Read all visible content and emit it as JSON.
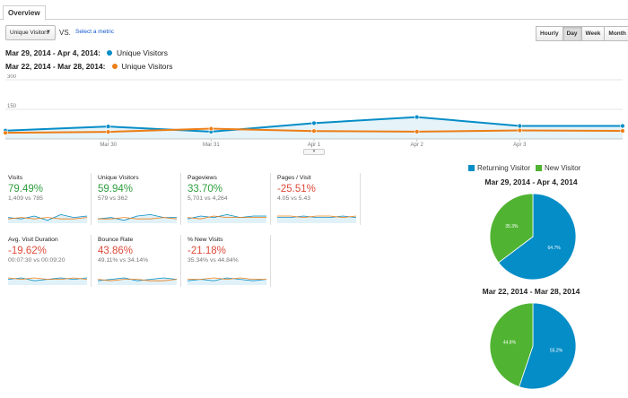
{
  "tabs": [
    {
      "label": "Overview"
    }
  ],
  "controls": {
    "metric_select": "Unique Visitors",
    "vs_label": "VS.",
    "select_metric_link": "Select a metric",
    "time_buttons": [
      "Hourly",
      "Day",
      "Week",
      "Month"
    ],
    "active_time_button": "Day"
  },
  "legend": [
    {
      "range": "Mar 29, 2014 - Apr 4, 2014:",
      "name": "Unique Visitors",
      "color": "#058dc7"
    },
    {
      "range": "Mar 22, 2014 - Mar 28, 2014:",
      "name": "Unique Visitors",
      "color": "#ed7e17"
    }
  ],
  "chart_data": {
    "type": "line",
    "x": [
      "Mar 29",
      "Mar 30",
      "Mar 31",
      "Apr 1",
      "Apr 2",
      "Apr 3",
      "Apr 4"
    ],
    "x_tick_labels": [
      "Mar 30",
      "Mar 31",
      "Apr 1",
      "Apr 2",
      "Apr 3"
    ],
    "y_tick_labels": [
      "300",
      "150"
    ],
    "ylim": [
      0,
      300
    ],
    "series": [
      {
        "name": "Unique Visitors",
        "color": "#058dc7",
        "fill": true,
        "values": [
          42,
          63,
          37,
          80,
          111,
          66,
          66
        ]
      },
      {
        "name": "Unique Visitors",
        "color": "#ed7e17",
        "fill": false,
        "values": [
          31,
          36,
          52,
          40,
          37,
          43,
          41
        ]
      }
    ],
    "grid": true
  },
  "scorecards": [
    {
      "title": "Visits",
      "change": "79.49%",
      "direction": "up",
      "comparison": "1,409 vs 785"
    },
    {
      "title": "Unique Visitors",
      "change": "59.94%",
      "direction": "up",
      "comparison": "579 vs 362"
    },
    {
      "title": "Pageviews",
      "change": "33.70%",
      "direction": "up",
      "comparison": "5,701 vs 4,264"
    },
    {
      "title": "Pages / Visit",
      "change": "-25.51%",
      "direction": "down",
      "comparison": "4.05 vs 5.43"
    },
    {
      "title": "Avg. Visit Duration",
      "change": "-19.62%",
      "direction": "down",
      "comparison": "00:07:30 vs 00:09:20"
    },
    {
      "title": "Bounce Rate",
      "change": "43.86%",
      "direction": "down",
      "comparison": "49.11% vs 34.14%"
    },
    {
      "title": "% New Visits",
      "change": "-21.18%",
      "direction": "down",
      "comparison": "35.34% vs 44.84%"
    }
  ],
  "pie_legend": [
    {
      "label": "Returning Visitor",
      "color": "#058dc7"
    },
    {
      "label": "New Visitor",
      "color": "#50b432"
    }
  ],
  "pies": [
    {
      "title": "Mar 29, 2014 - Apr 4, 2014",
      "slices": [
        {
          "label": "Returning Visitor",
          "value": 64.7,
          "text": "64.7%"
        },
        {
          "label": "New Visitor",
          "value": 35.3,
          "text": "35.3%"
        }
      ]
    },
    {
      "title": "Mar 22, 2014 - Mar 28, 2014",
      "slices": [
        {
          "label": "Returning Visitor",
          "value": 55.2,
          "text": "55.2%"
        },
        {
          "label": "New Visitor",
          "value": 44.8,
          "text": "44.8%"
        }
      ]
    }
  ]
}
